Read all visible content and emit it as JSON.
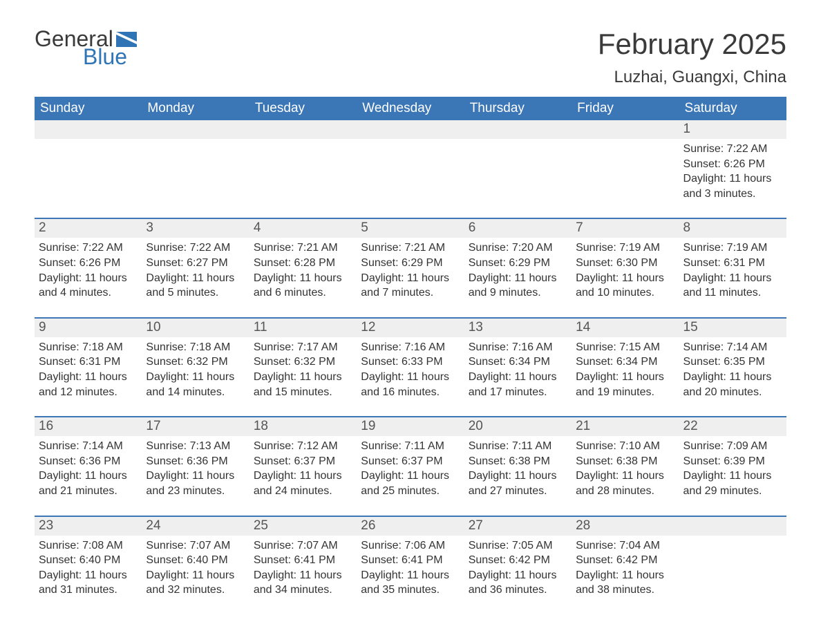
{
  "brand": {
    "word1": "General",
    "word2": "Blue",
    "flag_color": "#2f75b5"
  },
  "title": "February 2025",
  "location": "Luzhai, Guangxi, China",
  "colors": {
    "header_bg": "#3b76b6",
    "header_text": "#ffffff",
    "daynum_bg": "#efefef",
    "text": "#333333",
    "rule": "#3b76b6",
    "background": "#ffffff"
  },
  "table": {
    "columns": [
      "Sunday",
      "Monday",
      "Tuesday",
      "Wednesday",
      "Thursday",
      "Friday",
      "Saturday"
    ],
    "weeks": [
      [
        null,
        null,
        null,
        null,
        null,
        null,
        {
          "n": "1",
          "sr": "7:22 AM",
          "ss": "6:26 PM",
          "dl": "11 hours and 3 minutes."
        }
      ],
      [
        {
          "n": "2",
          "sr": "7:22 AM",
          "ss": "6:26 PM",
          "dl": "11 hours and 4 minutes."
        },
        {
          "n": "3",
          "sr": "7:22 AM",
          "ss": "6:27 PM",
          "dl": "11 hours and 5 minutes."
        },
        {
          "n": "4",
          "sr": "7:21 AM",
          "ss": "6:28 PM",
          "dl": "11 hours and 6 minutes."
        },
        {
          "n": "5",
          "sr": "7:21 AM",
          "ss": "6:29 PM",
          "dl": "11 hours and 7 minutes."
        },
        {
          "n": "6",
          "sr": "7:20 AM",
          "ss": "6:29 PM",
          "dl": "11 hours and 9 minutes."
        },
        {
          "n": "7",
          "sr": "7:19 AM",
          "ss": "6:30 PM",
          "dl": "11 hours and 10 minutes."
        },
        {
          "n": "8",
          "sr": "7:19 AM",
          "ss": "6:31 PM",
          "dl": "11 hours and 11 minutes."
        }
      ],
      [
        {
          "n": "9",
          "sr": "7:18 AM",
          "ss": "6:31 PM",
          "dl": "11 hours and 12 minutes."
        },
        {
          "n": "10",
          "sr": "7:18 AM",
          "ss": "6:32 PM",
          "dl": "11 hours and 14 minutes."
        },
        {
          "n": "11",
          "sr": "7:17 AM",
          "ss": "6:32 PM",
          "dl": "11 hours and 15 minutes."
        },
        {
          "n": "12",
          "sr": "7:16 AM",
          "ss": "6:33 PM",
          "dl": "11 hours and 16 minutes."
        },
        {
          "n": "13",
          "sr": "7:16 AM",
          "ss": "6:34 PM",
          "dl": "11 hours and 17 minutes."
        },
        {
          "n": "14",
          "sr": "7:15 AM",
          "ss": "6:34 PM",
          "dl": "11 hours and 19 minutes."
        },
        {
          "n": "15",
          "sr": "7:14 AM",
          "ss": "6:35 PM",
          "dl": "11 hours and 20 minutes."
        }
      ],
      [
        {
          "n": "16",
          "sr": "7:14 AM",
          "ss": "6:36 PM",
          "dl": "11 hours and 21 minutes."
        },
        {
          "n": "17",
          "sr": "7:13 AM",
          "ss": "6:36 PM",
          "dl": "11 hours and 23 minutes."
        },
        {
          "n": "18",
          "sr": "7:12 AM",
          "ss": "6:37 PM",
          "dl": "11 hours and 24 minutes."
        },
        {
          "n": "19",
          "sr": "7:11 AM",
          "ss": "6:37 PM",
          "dl": "11 hours and 25 minutes."
        },
        {
          "n": "20",
          "sr": "7:11 AM",
          "ss": "6:38 PM",
          "dl": "11 hours and 27 minutes."
        },
        {
          "n": "21",
          "sr": "7:10 AM",
          "ss": "6:38 PM",
          "dl": "11 hours and 28 minutes."
        },
        {
          "n": "22",
          "sr": "7:09 AM",
          "ss": "6:39 PM",
          "dl": "11 hours and 29 minutes."
        }
      ],
      [
        {
          "n": "23",
          "sr": "7:08 AM",
          "ss": "6:40 PM",
          "dl": "11 hours and 31 minutes."
        },
        {
          "n": "24",
          "sr": "7:07 AM",
          "ss": "6:40 PM",
          "dl": "11 hours and 32 minutes."
        },
        {
          "n": "25",
          "sr": "7:07 AM",
          "ss": "6:41 PM",
          "dl": "11 hours and 34 minutes."
        },
        {
          "n": "26",
          "sr": "7:06 AM",
          "ss": "6:41 PM",
          "dl": "11 hours and 35 minutes."
        },
        {
          "n": "27",
          "sr": "7:05 AM",
          "ss": "6:42 PM",
          "dl": "11 hours and 36 minutes."
        },
        {
          "n": "28",
          "sr": "7:04 AM",
          "ss": "6:42 PM",
          "dl": "11 hours and 38 minutes."
        },
        null
      ]
    ],
    "labels": {
      "sunrise": "Sunrise: ",
      "sunset": "Sunset: ",
      "daylight": "Daylight: "
    }
  }
}
